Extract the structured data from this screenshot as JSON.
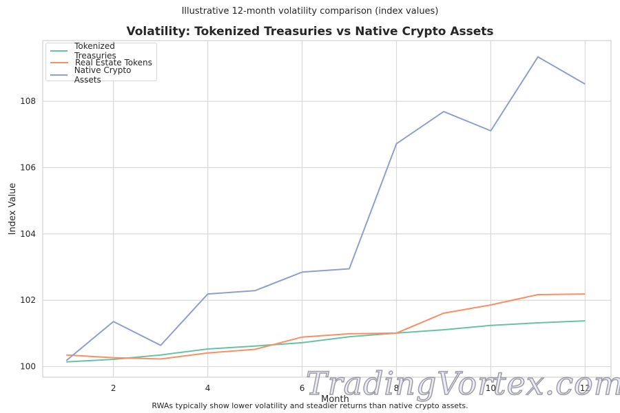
{
  "header": {
    "suptitle": "Illustrative 12-month volatility comparison (index values)",
    "title": "Volatility: Tokenized Treasuries vs Native Crypto Assets"
  },
  "footer": {
    "caption": "RWAs typically show lower volatility and steadier returns than native crypto assets."
  },
  "watermark": {
    "text": "TradingVortex.com"
  },
  "chart_data": {
    "type": "line",
    "title": "Volatility: Tokenized Treasuries vs Native Crypto Assets",
    "subtitle": "Illustrative 12-month volatility comparison (index values)",
    "xlabel": "Month",
    "ylabel": "Index Value",
    "x": [
      1,
      2,
      3,
      4,
      5,
      6,
      7,
      8,
      9,
      10,
      11,
      12
    ],
    "xticks": [
      2,
      4,
      6,
      8,
      10,
      12
    ],
    "yticks": [
      100,
      102,
      104,
      106,
      108
    ],
    "xlim": [
      0.5,
      12.55
    ],
    "ylim": [
      99.68,
      109.83
    ],
    "grid": true,
    "legend_position": "upper left",
    "series": [
      {
        "name": "Tokenized Treasuries",
        "color": "#66c2a5",
        "values": [
          100.14,
          100.22,
          100.35,
          100.53,
          100.62,
          100.72,
          100.9,
          101.01,
          101.11,
          101.24,
          101.32,
          101.38
        ]
      },
      {
        "name": "Real Estate Tokens",
        "color": "#fc8d62",
        "values": [
          100.35,
          100.27,
          100.23,
          100.41,
          100.52,
          100.89,
          100.99,
          101.01,
          101.61,
          101.86,
          102.17,
          102.19
        ]
      },
      {
        "name": "Native Crypto Assets",
        "color": "#8da0cb",
        "values": [
          100.18,
          101.36,
          100.64,
          102.19,
          102.29,
          102.85,
          102.95,
          106.72,
          107.69,
          107.11,
          109.34,
          108.52
        ]
      }
    ],
    "footnote": "RWAs typically show lower volatility and steadier returns than native crypto assets."
  }
}
